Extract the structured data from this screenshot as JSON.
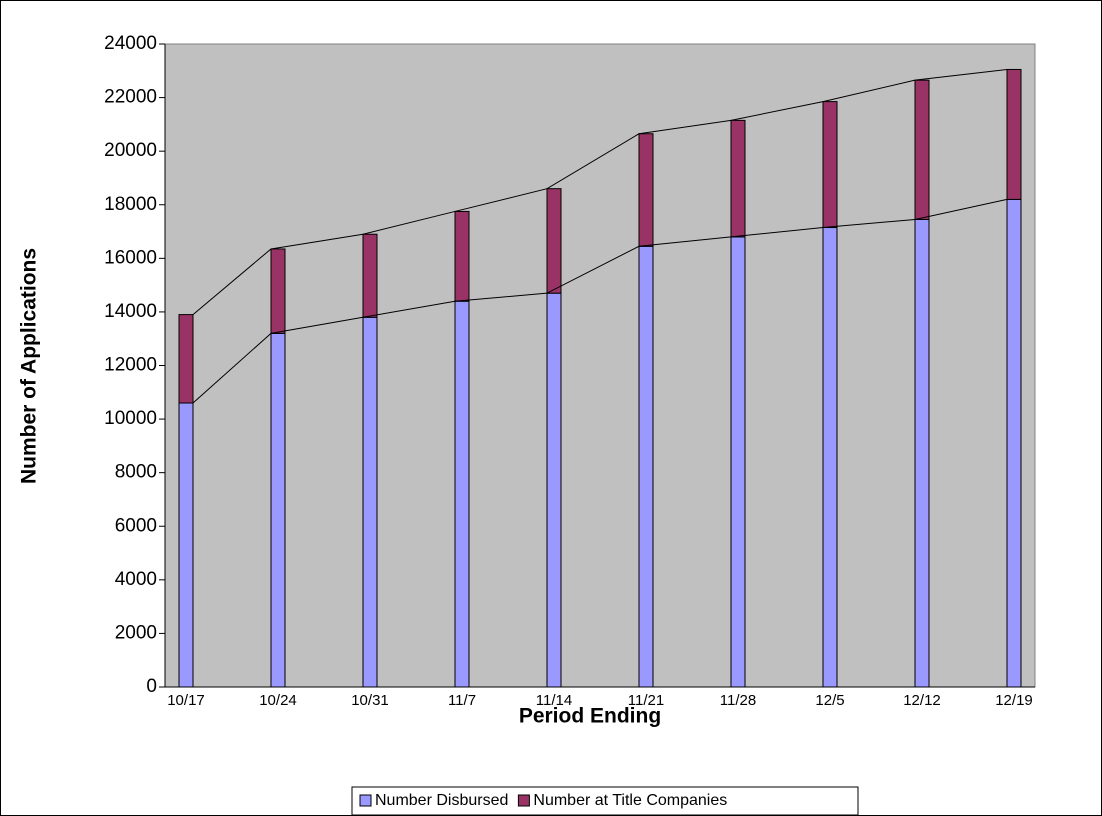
{
  "chart_data": {
    "type": "stacked_bar",
    "xlabel": "Period Ending",
    "ylabel": "Number of Applications",
    "categories": [
      "10/17",
      "10/24",
      "10/31",
      "11/7",
      "11/14",
      "11/21",
      "11/28",
      "12/5",
      "12/12",
      "12/19"
    ],
    "series": [
      {
        "name": "Number Disbursed",
        "color": "#9999ff",
        "values": [
          10600,
          13200,
          13800,
          14400,
          14700,
          16450,
          16800,
          17150,
          17450,
          18200
        ]
      },
      {
        "name": "Number at Title Companies",
        "color": "#993366",
        "values": [
          3300,
          3150,
          3100,
          3350,
          3900,
          4200,
          4350,
          4700,
          5200,
          4850
        ]
      }
    ],
    "ylim": [
      0,
      24000
    ],
    "yticks": [
      0,
      2000,
      4000,
      6000,
      8000,
      10000,
      12000,
      14000,
      16000,
      18000,
      20000,
      22000,
      24000
    ],
    "plot_background": "#c0c0c0",
    "legend": "bottom"
  }
}
